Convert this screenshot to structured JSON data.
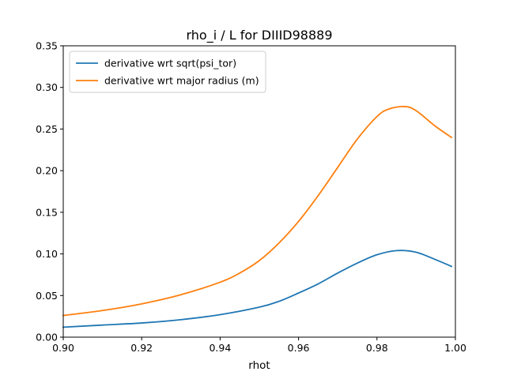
{
  "chart_data": {
    "type": "line",
    "title": "rho_i / L for DIIID98889",
    "xlabel": "rhot",
    "ylabel": "",
    "xlim": [
      0.9,
      1.0
    ],
    "ylim": [
      0.0,
      0.35
    ],
    "grid": false,
    "legend_position": "top-left",
    "x_ticks": [
      "0.90",
      "0.92",
      "0.94",
      "0.96",
      "0.98",
      "1.00"
    ],
    "y_ticks": [
      "0.00",
      "0.05",
      "0.10",
      "0.15",
      "0.20",
      "0.25",
      "0.30",
      "0.35"
    ],
    "series": [
      {
        "name": "derivative wrt sqrt(psi_tor)",
        "color": "#1f77b4",
        "x": [
          0.9,
          0.91,
          0.92,
          0.93,
          0.94,
          0.95,
          0.955,
          0.96,
          0.965,
          0.97,
          0.975,
          0.98,
          0.985,
          0.99,
          0.995,
          0.999
        ],
        "y": [
          0.012,
          0.0145,
          0.017,
          0.021,
          0.027,
          0.036,
          0.043,
          0.053,
          0.064,
          0.077,
          0.089,
          0.099,
          0.104,
          0.102,
          0.093,
          0.085
        ]
      },
      {
        "name": "derivative wrt major radius (m)",
        "color": "#ff7f0e",
        "x": [
          0.9,
          0.91,
          0.92,
          0.93,
          0.94,
          0.945,
          0.95,
          0.955,
          0.96,
          0.965,
          0.97,
          0.975,
          0.98,
          0.983,
          0.987,
          0.99,
          0.995,
          0.999
        ],
        "y": [
          0.026,
          0.032,
          0.04,
          0.051,
          0.066,
          0.077,
          0.092,
          0.113,
          0.139,
          0.17,
          0.204,
          0.238,
          0.265,
          0.274,
          0.277,
          0.272,
          0.253,
          0.24
        ]
      }
    ]
  }
}
